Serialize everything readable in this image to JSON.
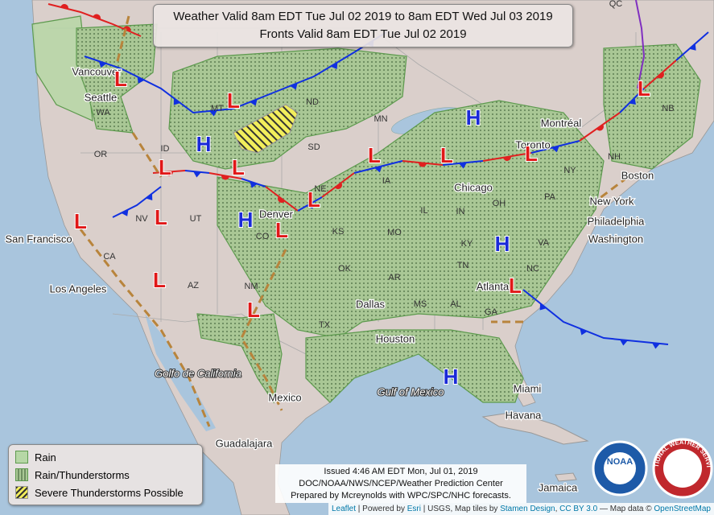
{
  "header": {
    "title_lines": [
      "Weather Valid 8am EDT Tue Jul 02 2019 to 8am EDT Wed Jul 03 2019",
      "Fronts Valid 8am EDT Tue Jul 02 2019"
    ]
  },
  "legend": {
    "items": [
      "Rain",
      "Rain/Thunderstorms",
      "Severe Thunderstorms Possible"
    ]
  },
  "credits": {
    "lines": [
      "Issued 4:46 AM EDT Mon, Jul 01, 2019",
      "DOC/NOAA/NWS/NCEP/Weather Prediction Center",
      "Prepared by Mcreynolds with WPC/SPC/NHC forecasts."
    ]
  },
  "attribution": {
    "parts": [
      "Leaflet",
      "| Powered by",
      "Esri",
      "| USGS, Map tiles by",
      "Stamen Design",
      ",",
      "CC BY 3.0",
      "— Map data ©",
      "OpenStreetMap"
    ]
  },
  "map": {
    "states": [
      "WA",
      "OR",
      "ID",
      "MT",
      "ND",
      "MN",
      "SD",
      "NE",
      "IA",
      "NV",
      "UT",
      "CO",
      "KS",
      "MO",
      "IL",
      "IN",
      "OH",
      "PA",
      "NY",
      "KY",
      "TN",
      "NC",
      "VA",
      "CA",
      "AZ",
      "NM",
      "OK",
      "AR",
      "MS",
      "AL",
      "GA",
      "TX",
      "NH",
      "NB",
      "QC"
    ],
    "cities": [
      "Vancouver",
      "Seattle",
      "San Francisco",
      "Los Angeles",
      "Denver",
      "Dallas",
      "Houston",
      "Chicago",
      "Toronto",
      "Montréal",
      "Boston",
      "New York",
      "Philadelphia",
      "Washington",
      "Atlanta",
      "Miami",
      "Havana",
      "Mexico",
      "Guadalajara",
      "Jamaica"
    ],
    "water_labels": [
      "Golfo de California",
      "Gulf of Mexico"
    ],
    "highs": [
      "H",
      "H",
      "H",
      "H",
      "H"
    ],
    "lows": [
      "L",
      "L",
      "L",
      "L",
      "L",
      "L",
      "L",
      "L",
      "L",
      "L",
      "L",
      "L",
      "L",
      "L",
      "L"
    ]
  },
  "logos": [
    "NOAA",
    "NATIONAL WEATHER SERVICE"
  ]
}
